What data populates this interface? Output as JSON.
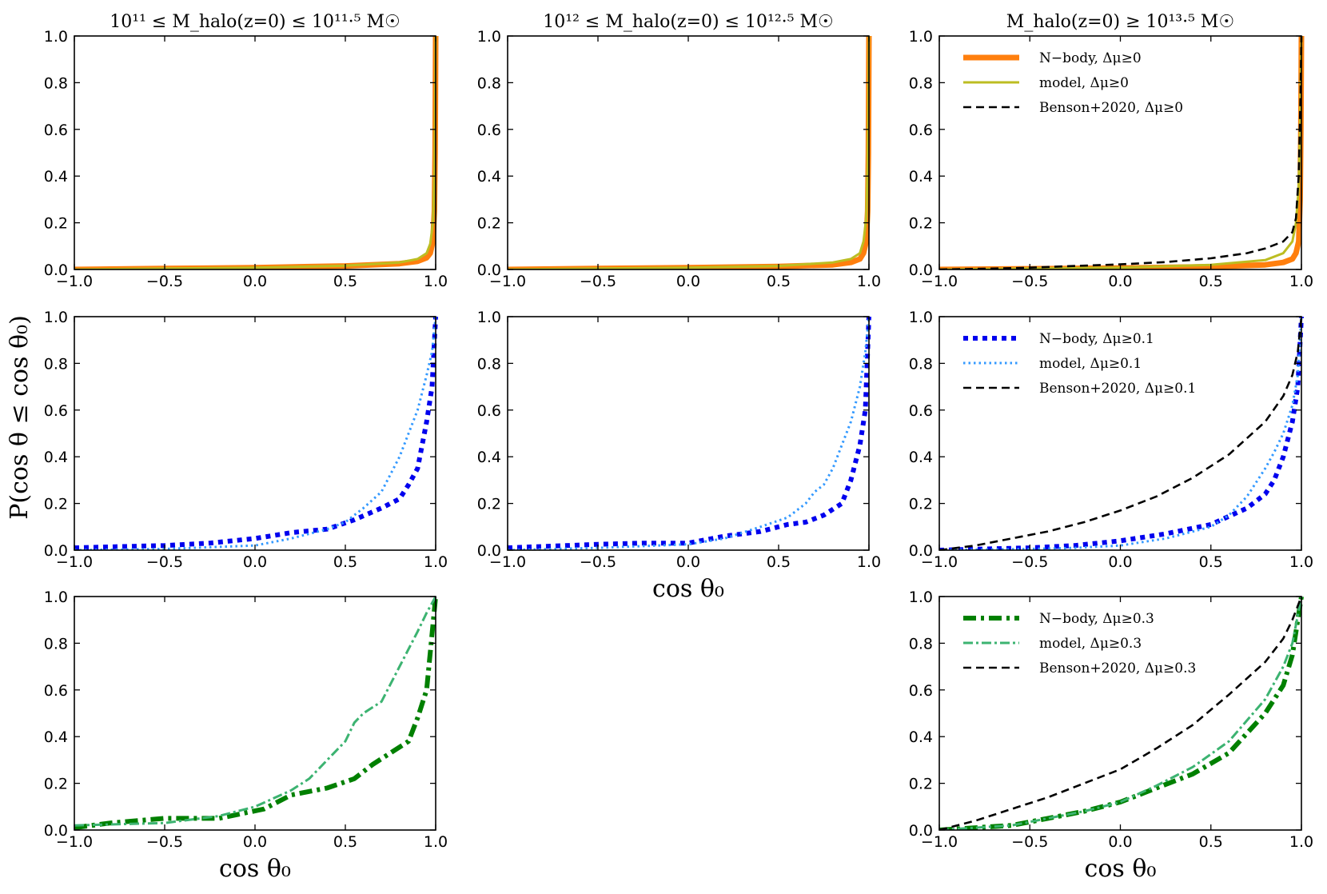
{
  "figure": {
    "ylabel": "P(cos θ ≤ cos θ₀)",
    "xlabel": "cos θ₀"
  },
  "chart_data": [
    {
      "panel": "r1c1",
      "type": "line",
      "title": "10¹¹ ≤ M_halo(z=0) ≤ 10¹¹·⁵ M☉",
      "xlim": [
        -1,
        1
      ],
      "ylim": [
        0,
        1
      ],
      "xticks": [
        "−1.0",
        "−0.5",
        "0.0",
        "0.5",
        "1.0"
      ],
      "yticks": [
        "0.0",
        "0.2",
        "0.4",
        "0.6",
        "0.8",
        "1.0"
      ],
      "xlabel": "",
      "legend": false,
      "series": [
        {
          "name": "N−body, Δμ≥0",
          "color": "#ff7f0e",
          "style": "solid-thick",
          "x": [
            -1,
            -0.5,
            0,
            0.5,
            0.8,
            0.9,
            0.95,
            0.97,
            0.985,
            0.993,
            0.997,
            1.0
          ],
          "y": [
            0,
            0.004,
            0.008,
            0.015,
            0.025,
            0.035,
            0.05,
            0.07,
            0.12,
            0.25,
            0.5,
            1.0
          ]
        },
        {
          "name": "model, Δμ≥0",
          "color": "#bcbd22",
          "style": "solid",
          "x": [
            -1,
            -0.5,
            0,
            0.5,
            0.8,
            0.9,
            0.95,
            0.97,
            0.985,
            0.993,
            0.997,
            1.0
          ],
          "y": [
            0,
            0.004,
            0.008,
            0.016,
            0.03,
            0.045,
            0.07,
            0.11,
            0.2,
            0.4,
            0.7,
            1.0
          ]
        }
      ]
    },
    {
      "panel": "r1c2",
      "type": "line",
      "title": "10¹² ≤ M_halo(z=0) ≤ 10¹²·⁵ M☉",
      "xlim": [
        -1,
        1
      ],
      "ylim": [
        0,
        1
      ],
      "xticks": [
        "−1.0",
        "−0.5",
        "0.0",
        "0.5",
        "1.0"
      ],
      "yticks": [
        "0.0",
        "0.2",
        "0.4",
        "0.6",
        "0.8",
        "1.0"
      ],
      "xlabel": "",
      "legend": false,
      "series": [
        {
          "name": "N−body, Δμ≥0",
          "color": "#ff7f0e",
          "style": "solid-thick",
          "x": [
            -1,
            -0.5,
            0,
            0.5,
            0.8,
            0.9,
            0.95,
            0.97,
            0.985,
            0.993,
            0.997,
            1.0
          ],
          "y": [
            0,
            0.004,
            0.008,
            0.013,
            0.02,
            0.03,
            0.045,
            0.07,
            0.12,
            0.25,
            0.5,
            1.0
          ]
        },
        {
          "name": "model, Δμ≥0",
          "color": "#bcbd22",
          "style": "solid",
          "x": [
            -1,
            -0.5,
            0,
            0.5,
            0.8,
            0.9,
            0.95,
            0.97,
            0.985,
            0.993,
            0.997,
            1.0
          ],
          "y": [
            0,
            0.004,
            0.008,
            0.015,
            0.03,
            0.045,
            0.07,
            0.12,
            0.22,
            0.45,
            0.75,
            1.0
          ]
        }
      ]
    },
    {
      "panel": "r1c3",
      "type": "line",
      "title": "M_halo(z=0) ≥ 10¹³·⁵ M☉",
      "xlim": [
        -1,
        1
      ],
      "ylim": [
        0,
        1
      ],
      "xticks": [
        "−1.0",
        "−0.5",
        "0.0",
        "0.5",
        "1.0"
      ],
      "yticks": [
        "0.0",
        "0.2",
        "0.4",
        "0.6",
        "0.8",
        "1.0"
      ],
      "xlabel": "",
      "legend": true,
      "series": [
        {
          "name": "N−body, Δμ≥0",
          "color": "#ff7f0e",
          "style": "solid-thick",
          "x": [
            -1,
            -0.5,
            0,
            0.5,
            0.8,
            0.9,
            0.95,
            0.97,
            0.985,
            0.993,
            0.997,
            1.0
          ],
          "y": [
            0,
            0.003,
            0.006,
            0.012,
            0.02,
            0.03,
            0.045,
            0.07,
            0.12,
            0.3,
            0.6,
            1.0
          ]
        },
        {
          "name": "model, Δμ≥0",
          "color": "#bcbd22",
          "style": "solid",
          "x": [
            -1,
            -0.5,
            0,
            0.5,
            0.8,
            0.9,
            0.95,
            0.97,
            0.985,
            0.993,
            0.997,
            1.0
          ],
          "y": [
            0,
            0.004,
            0.008,
            0.02,
            0.04,
            0.07,
            0.12,
            0.2,
            0.35,
            0.6,
            0.85,
            1.0
          ]
        },
        {
          "name": "Benson+2020, Δμ≥0",
          "color": "#000000",
          "style": "dashed",
          "x": [
            -1,
            -0.75,
            -0.5,
            -0.25,
            0,
            0.25,
            0.5,
            0.7,
            0.8,
            0.9,
            0.95,
            0.97,
            0.985,
            0.995,
            1.0
          ],
          "y": [
            0,
            0.003,
            0.008,
            0.015,
            0.022,
            0.032,
            0.048,
            0.07,
            0.09,
            0.12,
            0.16,
            0.22,
            0.4,
            0.75,
            1.0
          ]
        }
      ]
    },
    {
      "panel": "r2c1",
      "type": "line",
      "title": "",
      "xlim": [
        -1,
        1
      ],
      "ylim": [
        0,
        1
      ],
      "xticks": [
        "−1.0",
        "−0.5",
        "0.0",
        "0.5",
        "1.0"
      ],
      "yticks": [
        "0.0",
        "0.2",
        "0.4",
        "0.6",
        "0.8",
        "1.0"
      ],
      "xlabel": "",
      "legend": false,
      "series": [
        {
          "name": "N−body, Δμ≥0.1",
          "color": "#0000ee",
          "style": "dotted-thick",
          "x": [
            -1,
            -0.75,
            -0.5,
            -0.25,
            0,
            0.2,
            0.4,
            0.55,
            0.7,
            0.8,
            0.85,
            0.9,
            0.95,
            0.98,
            1.0
          ],
          "y": [
            0.01,
            0.015,
            0.02,
            0.03,
            0.05,
            0.075,
            0.09,
            0.13,
            0.18,
            0.22,
            0.28,
            0.35,
            0.55,
            0.7,
            1.0
          ]
        },
        {
          "name": "model, Δμ≥0.1",
          "color": "#3399ff",
          "style": "dotted",
          "x": [
            -1,
            -0.5,
            0,
            0.2,
            0.4,
            0.5,
            0.6,
            0.7,
            0.8,
            0.85,
            0.9,
            0.95,
            0.98,
            1.0
          ],
          "y": [
            0,
            0.005,
            0.02,
            0.05,
            0.09,
            0.12,
            0.18,
            0.25,
            0.4,
            0.5,
            0.6,
            0.75,
            0.85,
            1.0
          ]
        }
      ]
    },
    {
      "panel": "r2c2",
      "type": "line",
      "title": "",
      "xlim": [
        -1,
        1
      ],
      "ylim": [
        0,
        1
      ],
      "xticks": [
        "−1.0",
        "−0.5",
        "0.0",
        "0.5",
        "1.0"
      ],
      "yticks": [
        "0.0",
        "0.2",
        "0.4",
        "0.6",
        "0.8",
        "1.0"
      ],
      "xlabel": "cos θ₀",
      "legend": false,
      "series": [
        {
          "name": "N−body, Δμ≥0.1",
          "color": "#0000ee",
          "style": "dotted-thick",
          "x": [
            -1,
            -0.5,
            -0.25,
            0,
            0.2,
            0.4,
            0.55,
            0.65,
            0.75,
            0.85,
            0.9,
            0.95,
            0.98,
            1.0
          ],
          "y": [
            0.01,
            0.025,
            0.03,
            0.03,
            0.06,
            0.08,
            0.11,
            0.12,
            0.15,
            0.2,
            0.3,
            0.45,
            0.6,
            1.0
          ]
        },
        {
          "name": "model, Δμ≥0.1",
          "color": "#3399ff",
          "style": "dotted",
          "x": [
            -1,
            -0.5,
            0,
            0.2,
            0.4,
            0.55,
            0.65,
            0.7,
            0.75,
            0.8,
            0.85,
            0.9,
            0.95,
            0.98,
            1.0
          ],
          "y": [
            0,
            0.01,
            0.025,
            0.05,
            0.1,
            0.14,
            0.2,
            0.25,
            0.28,
            0.35,
            0.45,
            0.55,
            0.7,
            0.85,
            1.0
          ]
        }
      ]
    },
    {
      "panel": "r2c3",
      "type": "line",
      "title": "",
      "xlim": [
        -1,
        1
      ],
      "ylim": [
        0,
        1
      ],
      "xticks": [
        "−1.0",
        "−0.5",
        "0.0",
        "0.5",
        "1.0"
      ],
      "yticks": [
        "0.0",
        "0.2",
        "0.4",
        "0.6",
        "0.8",
        "1.0"
      ],
      "xlabel": "",
      "legend": true,
      "series": [
        {
          "name": "N−body, Δμ≥0.1",
          "color": "#0000ee",
          "style": "dotted-thick",
          "x": [
            -1,
            -0.5,
            -0.25,
            0,
            0.25,
            0.5,
            0.7,
            0.8,
            0.85,
            0.9,
            0.95,
            0.98,
            1.0
          ],
          "y": [
            0,
            0.01,
            0.02,
            0.04,
            0.07,
            0.11,
            0.18,
            0.24,
            0.3,
            0.4,
            0.55,
            0.7,
            1.0
          ]
        },
        {
          "name": "model, Δμ≥0.1",
          "color": "#3399ff",
          "style": "dotted",
          "x": [
            -1,
            -0.5,
            -0.25,
            0,
            0.25,
            0.5,
            0.6,
            0.7,
            0.8,
            0.85,
            0.9,
            0.95,
            0.98,
            1.0
          ],
          "y": [
            0,
            0.005,
            0.01,
            0.02,
            0.05,
            0.1,
            0.15,
            0.23,
            0.35,
            0.42,
            0.5,
            0.62,
            0.75,
            1.0
          ]
        },
        {
          "name": "Benson+2020, Δμ≥0.1",
          "color": "#000000",
          "style": "dashed",
          "x": [
            -1,
            -0.8,
            -0.6,
            -0.4,
            -0.2,
            0,
            0.2,
            0.4,
            0.6,
            0.8,
            0.9,
            0.95,
            0.98,
            1.0
          ],
          "y": [
            0,
            0.02,
            0.05,
            0.08,
            0.12,
            0.17,
            0.23,
            0.31,
            0.41,
            0.55,
            0.66,
            0.75,
            0.85,
            1.0
          ]
        }
      ]
    },
    {
      "panel": "r3c1",
      "type": "line",
      "title": "",
      "xlim": [
        -1,
        1
      ],
      "ylim": [
        0,
        1
      ],
      "xticks": [
        "−1.0",
        "−0.5",
        "0.0",
        "0.5",
        "1.0"
      ],
      "yticks": [
        "0.0",
        "0.2",
        "0.4",
        "0.6",
        "0.8",
        "1.0"
      ],
      "xlabel": "cos θ₀",
      "legend": false,
      "series": [
        {
          "name": "N−body, Δμ≥0.3",
          "color": "#008000",
          "style": "dashdot-thick",
          "x": [
            -1,
            -0.8,
            -0.5,
            -0.2,
            0.05,
            0.2,
            0.4,
            0.55,
            0.65,
            0.75,
            0.85,
            0.9,
            0.95,
            1.0
          ],
          "y": [
            0.01,
            0.03,
            0.05,
            0.05,
            0.09,
            0.15,
            0.18,
            0.22,
            0.28,
            0.33,
            0.38,
            0.48,
            0.6,
            1.0
          ]
        },
        {
          "name": "model, Δμ≥0.3",
          "color": "#3cb371",
          "style": "dashdot",
          "x": [
            -1,
            -0.5,
            -0.2,
            0,
            0.2,
            0.3,
            0.4,
            0.5,
            0.55,
            0.6,
            0.7,
            0.8,
            0.9,
            0.95,
            1.0
          ],
          "y": [
            0.02,
            0.03,
            0.06,
            0.1,
            0.17,
            0.22,
            0.3,
            0.38,
            0.46,
            0.5,
            0.55,
            0.7,
            0.85,
            0.93,
            1.0
          ]
        }
      ]
    },
    {
      "panel": "r3c3",
      "type": "line",
      "title": "",
      "xlim": [
        -1,
        1
      ],
      "ylim": [
        0,
        1
      ],
      "xticks": [
        "−1.0",
        "−0.5",
        "0.0",
        "0.5",
        "1.0"
      ],
      "yticks": [
        "0.0",
        "0.2",
        "0.4",
        "0.6",
        "0.8",
        "1.0"
      ],
      "xlabel": "cos θ₀",
      "legend": true,
      "series": [
        {
          "name": "N−body, Δμ≥0.3",
          "color": "#008000",
          "style": "dashdot-thick",
          "x": [
            -1,
            -0.6,
            -0.4,
            -0.2,
            0,
            0.2,
            0.4,
            0.6,
            0.8,
            0.9,
            0.95,
            1.0
          ],
          "y": [
            0,
            0.02,
            0.05,
            0.08,
            0.12,
            0.18,
            0.24,
            0.33,
            0.5,
            0.62,
            0.75,
            1.0
          ]
        },
        {
          "name": "model, Δμ≥0.3",
          "color": "#3cb371",
          "style": "dashdot",
          "x": [
            -1,
            -0.6,
            -0.4,
            -0.2,
            0,
            0.2,
            0.4,
            0.6,
            0.8,
            0.9,
            0.95,
            1.0
          ],
          "y": [
            0,
            0.02,
            0.05,
            0.08,
            0.12,
            0.19,
            0.27,
            0.38,
            0.56,
            0.7,
            0.8,
            1.0
          ]
        },
        {
          "name": "Benson+2020, Δμ≥0.3",
          "color": "#000000",
          "style": "dashed",
          "x": [
            -1,
            -0.8,
            -0.6,
            -0.4,
            -0.2,
            0,
            0.2,
            0.4,
            0.6,
            0.8,
            0.9,
            0.95,
            1.0
          ],
          "y": [
            0,
            0.04,
            0.09,
            0.14,
            0.2,
            0.26,
            0.35,
            0.45,
            0.58,
            0.72,
            0.82,
            0.9,
            1.0
          ]
        }
      ]
    }
  ]
}
